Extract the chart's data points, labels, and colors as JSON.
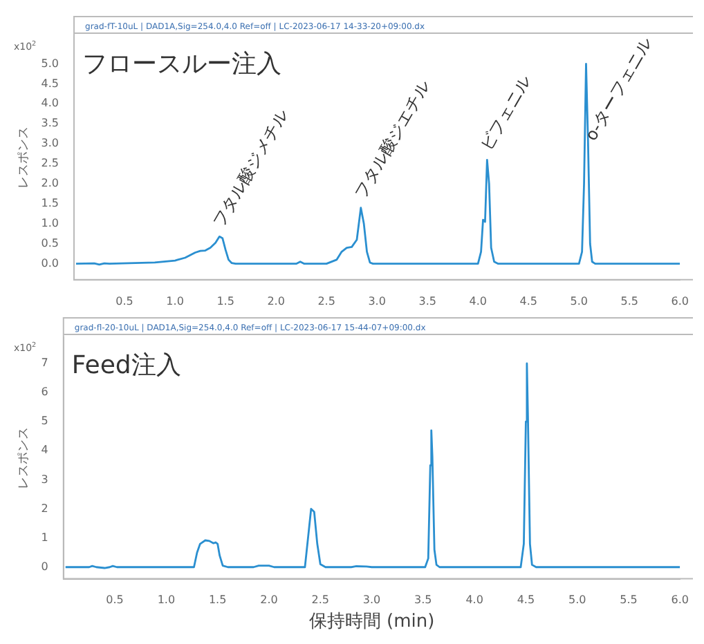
{
  "chart_data": [
    {
      "type": "line",
      "ylabel": "レスポンス",
      "annotations": [
        "grad-fT-10uL | DAD1A,Sig=254.0,4.0 Ref=off | LC-2023-06-17 14-33-20+09:00.dx",
        "x10$^{2}$",
        "フロースルー注入",
        {
          "text": "フタル酸ジメチル",
          "x": 1.44,
          "y": 0.68
        },
        {
          "text": "フタル酸ジエチル",
          "x": 2.84,
          "y": 1.4
        },
        {
          "text": "ビフェニル",
          "x": 4.09,
          "y": 2.6
        },
        {
          "text": "o-ターフェニル",
          "x": 5.07,
          "y": 5.0
        }
      ],
      "xlim": [
        0,
        6
      ],
      "xticks": [
        0.5,
        {
          "value": 1,
          "label": "1.0"
        },
        1.5,
        {
          "value": 2,
          "label": "2.0"
        },
        2.5,
        {
          "value": 3,
          "label": "3.0"
        },
        3.5,
        {
          "value": 4,
          "label": "4.0"
        },
        4.5,
        {
          "value": 5,
          "label": "5.0"
        },
        5.5,
        {
          "value": 6,
          "label": "6.0"
        }
      ],
      "ylim": [
        -0.4,
        5.7
      ],
      "yticks": [
        {
          "value": 0,
          "label": "0.0"
        },
        0.5,
        {
          "value": 1,
          "label": "1.0"
        },
        1.5,
        {
          "value": 2,
          "label": "2.0"
        },
        2.5,
        {
          "value": 3,
          "label": "3.0"
        },
        3.5,
        {
          "value": 4,
          "label": "4.0"
        },
        4.5,
        {
          "value": 5,
          "label": "5.0"
        }
      ],
      "grid": false,
      "legend": false,
      "marker": "none",
      "line_style": "solid",
      "series": [
        {
          "color": "#2a8fd0",
          "x": [
            0.02,
            0.2,
            0.25,
            0.3,
            0.35,
            0.8,
            1.0,
            1.1,
            1.2,
            1.25,
            1.3,
            1.35,
            1.4,
            1.44,
            1.47,
            1.5,
            1.53,
            1.56,
            1.6,
            2.2,
            2.24,
            2.28,
            2.5,
            2.6,
            2.65,
            2.7,
            2.75,
            2.8,
            2.84,
            2.87,
            2.9,
            2.93,
            2.96,
            4.0,
            4.03,
            4.05,
            4.07,
            4.09,
            4.11,
            4.13,
            4.16,
            4.2,
            5.0,
            5.03,
            5.05,
            5.07,
            5.09,
            5.11,
            5.13,
            5.16,
            6.0
          ],
          "values": [
            0,
            0.01,
            -0.02,
            0.01,
            0,
            0.03,
            0.08,
            0.15,
            0.28,
            0.32,
            0.33,
            0.4,
            0.52,
            0.68,
            0.64,
            0.35,
            0.1,
            0.02,
            0,
            0,
            0.05,
            0,
            0,
            0.1,
            0.3,
            0.4,
            0.42,
            0.6,
            1.4,
            1.0,
            0.3,
            0.03,
            0,
            0,
            0.3,
            1.1,
            1.05,
            2.6,
            2.0,
            0.4,
            0.05,
            0,
            0,
            0.3,
            2.0,
            5.0,
            3.0,
            0.5,
            0.05,
            0,
            0
          ]
        }
      ]
    },
    {
      "type": "line",
      "xlabel": "保持時間 (min)",
      "ylabel": "レスポンス",
      "annotations": [
        "grad-fl-20-10uL | DAD1A,Sig=254.0,4.0 Ref=off | LC-2023-06-17 15-44-07+09:00.dx",
        "x10$^{2}$",
        "Feed注入"
      ],
      "xlim": [
        0,
        6
      ],
      "xticks": [
        0.5,
        {
          "value": 1,
          "label": "1.0"
        },
        1.5,
        {
          "value": 2,
          "label": "2.0"
        },
        2.5,
        {
          "value": 3,
          "label": "3.0"
        },
        3.5,
        {
          "value": 4,
          "label": "4.0"
        },
        4.5,
        {
          "value": 5,
          "label": "5.0"
        },
        5.5,
        {
          "value": 6,
          "label": "6.0"
        }
      ],
      "ylim": [
        -0.4,
        7.9
      ],
      "yticks": [
        0,
        1,
        2,
        3,
        4,
        5,
        6,
        7
      ],
      "grid": false,
      "legend": false,
      "marker": "none",
      "line_style": "solid",
      "series": [
        {
          "color": "#2a8fd0",
          "x": [
            0.02,
            0.25,
            0.28,
            0.32,
            0.4,
            0.45,
            0.48,
            0.52,
            1.27,
            1.3,
            1.33,
            1.38,
            1.42,
            1.46,
            1.48,
            1.5,
            1.52,
            1.55,
            1.6,
            1.85,
            1.9,
            2.0,
            2.05,
            2.35,
            2.38,
            2.41,
            2.44,
            2.47,
            2.5,
            2.55,
            2.8,
            2.85,
            2.95,
            3.0,
            3.52,
            3.55,
            3.57,
            3.58,
            3.59,
            3.61,
            3.63,
            3.66,
            4.45,
            4.48,
            4.5,
            4.51,
            4.52,
            4.54,
            4.56,
            4.6,
            6.0
          ],
          "values": [
            0,
            0,
            0.04,
            0,
            -0.03,
            0,
            0.04,
            0,
            0,
            0.5,
            0.8,
            0.92,
            0.9,
            0.82,
            0.85,
            0.8,
            0.4,
            0.05,
            0,
            0,
            0.05,
            0.05,
            0,
            0,
            1.0,
            2.0,
            1.9,
            0.8,
            0.1,
            0,
            0,
            0.03,
            0.02,
            0,
            0,
            0.3,
            3.5,
            4.7,
            3.8,
            0.6,
            0.08,
            0,
            0,
            0.8,
            5.0,
            7.0,
            5.2,
            0.8,
            0.08,
            0,
            0
          ]
        }
      ]
    }
  ]
}
